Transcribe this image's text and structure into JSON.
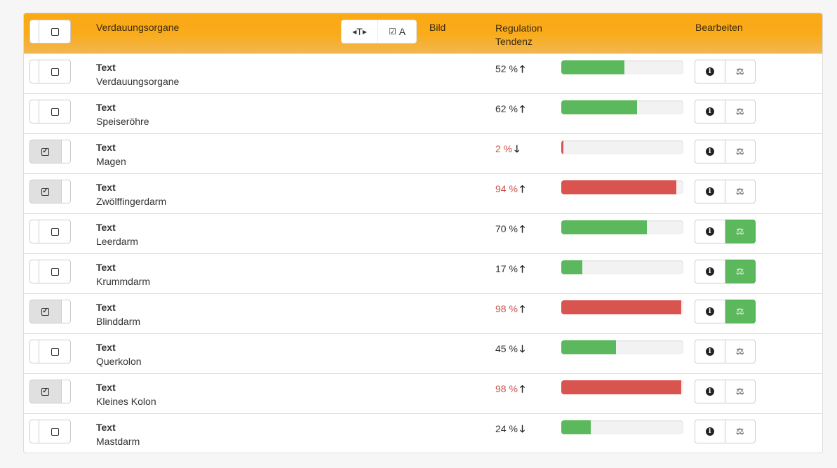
{
  "header": {
    "select_all_checked": false,
    "name_col": "Verdauungsorgane",
    "toggle_text_label": "T",
    "toggle_all_label": "A",
    "image_col": "Bild",
    "regulation_col_line1": "Regulation",
    "regulation_col_line2": "Tendenz",
    "edit_col": "Bearbeiten"
  },
  "colors": {
    "header": "#f9ab1a",
    "green": "#5cb85c",
    "red": "#d9534f"
  },
  "rows": [
    {
      "type": "Text",
      "name": "Verdauungsorgane",
      "checked": false,
      "percent": "52 %",
      "value": 52,
      "trend": "up",
      "status": "green",
      "balance_active": false
    },
    {
      "type": "Text",
      "name": "Speiseröhre",
      "checked": false,
      "percent": "62 %",
      "value": 62,
      "trend": "up",
      "status": "green",
      "balance_active": false
    },
    {
      "type": "Text",
      "name": "Magen",
      "checked": true,
      "percent": "2 %",
      "value": 2,
      "trend": "down",
      "status": "red",
      "balance_active": false
    },
    {
      "type": "Text",
      "name": "Zwölffingerdarm",
      "checked": true,
      "percent": "94 %",
      "value": 94,
      "trend": "up",
      "status": "red",
      "balance_active": false
    },
    {
      "type": "Text",
      "name": "Leerdarm",
      "checked": false,
      "percent": "70 %",
      "value": 70,
      "trend": "up",
      "status": "green",
      "balance_active": true
    },
    {
      "type": "Text",
      "name": "Krummdarm",
      "checked": false,
      "percent": "17 %",
      "value": 17,
      "trend": "up",
      "status": "green",
      "balance_active": true
    },
    {
      "type": "Text",
      "name": "Blinddarm",
      "checked": true,
      "percent": "98 %",
      "value": 98,
      "trend": "up",
      "status": "red",
      "balance_active": true
    },
    {
      "type": "Text",
      "name": "Querkolon",
      "checked": false,
      "percent": "45 %",
      "value": 45,
      "trend": "down",
      "status": "green",
      "balance_active": false
    },
    {
      "type": "Text",
      "name": "Kleines Kolon",
      "checked": true,
      "percent": "98 %",
      "value": 98,
      "trend": "up",
      "status": "red",
      "balance_active": false
    },
    {
      "type": "Text",
      "name": "Mastdarm",
      "checked": false,
      "percent": "24 %",
      "value": 24,
      "trend": "down",
      "status": "green",
      "balance_active": false
    }
  ]
}
